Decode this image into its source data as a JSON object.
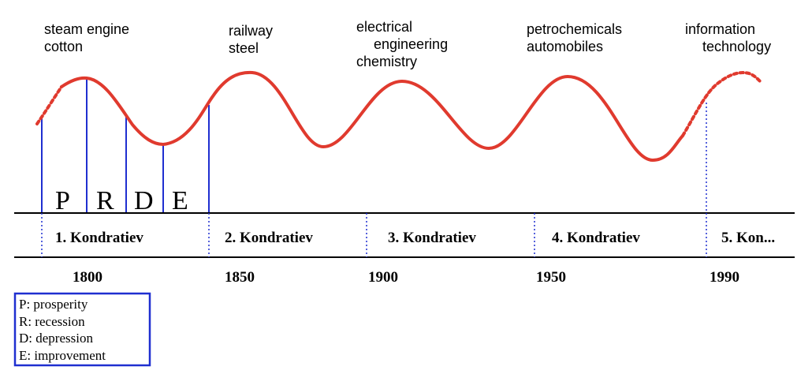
{
  "industry_labels": [
    {
      "lines": [
        "steam engine",
        "cotton"
      ]
    },
    {
      "lines": [
        "railway",
        "steel"
      ]
    },
    {
      "lines": [
        "electrical",
        "engineering",
        "chemistry"
      ]
    },
    {
      "lines": [
        "petrochemicals",
        "automobiles"
      ]
    },
    {
      "lines": [
        "information",
        "technology"
      ]
    }
  ],
  "phases": [
    "P",
    "R",
    "D",
    "E"
  ],
  "waves": [
    "1. Kondratiev",
    "2. Kondratiev",
    "3. Kondratiev",
    "4. Kondratiev",
    "5. Kon..."
  ],
  "years": [
    "1800",
    "1850",
    "1900",
    "1950",
    "1990"
  ],
  "legend": [
    "P: prosperity",
    "R: recession",
    "D: depression",
    "E: improvement"
  ],
  "colors": {
    "curve": "#e03a2e",
    "phase_lines": "#1f2fd0",
    "axis": "#000000",
    "legend_border": "#1f2fd0"
  }
}
